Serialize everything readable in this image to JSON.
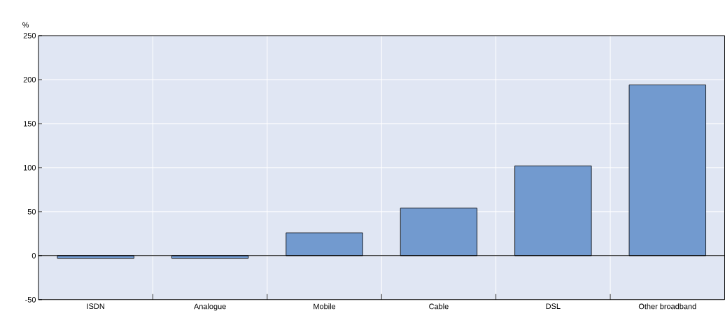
{
  "chart_data": {
    "type": "bar",
    "ylabel": "%",
    "categories": [
      "ISDN",
      "Analogue",
      "Mobile",
      "Cable",
      "DSL",
      "Other broadband"
    ],
    "values": [
      -3,
      -3,
      26,
      54,
      102,
      194
    ],
    "color": "#729acf",
    "ylim": [
      -50,
      250
    ],
    "yticks": [
      -50,
      0,
      50,
      100,
      150,
      200,
      250
    ],
    "grid": true
  }
}
